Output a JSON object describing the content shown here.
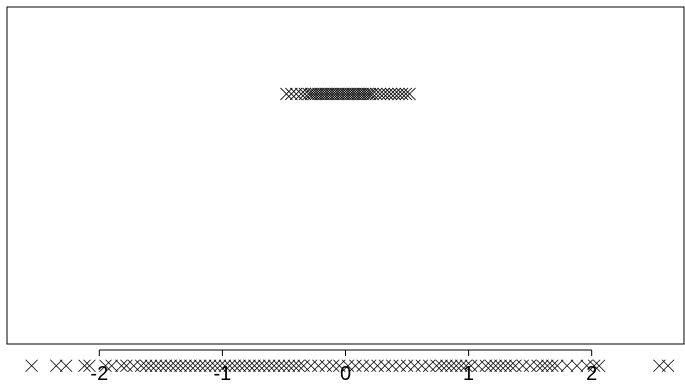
{
  "chart_data": {
    "type": "scatter",
    "title": "",
    "xlabel": "",
    "ylabel": "",
    "xlim": [
      -2.75,
      2.75
    ],
    "ylim": [
      0.08,
      1.32
    ],
    "xticks": [
      -2,
      -1,
      0,
      1,
      2
    ],
    "tick_labels": [
      "-2",
      "-1",
      "0",
      "1",
      "2"
    ],
    "grid": false,
    "marker": "x",
    "series": [
      {
        "y": 1,
        "x": [
          -0.48,
          -0.44,
          -0.4,
          -0.36,
          -0.33,
          -0.3,
          -0.28,
          -0.26,
          -0.24,
          -0.22,
          -0.2,
          -0.18,
          -0.16,
          -0.14,
          -0.12,
          -0.1,
          -0.08,
          -0.06,
          -0.04,
          -0.02,
          0.0,
          0.02,
          0.04,
          0.06,
          0.08,
          0.1,
          0.12,
          0.14,
          0.16,
          0.18,
          0.2,
          0.22,
          0.25,
          0.28,
          0.31,
          0.34,
          0.37,
          0.4,
          0.43,
          0.46,
          0.49,
          0.52
        ]
      },
      {
        "y": 0,
        "x": [
          -2.55,
          -2.35,
          -2.27,
          -2.12,
          -2.08,
          -1.95,
          -1.9,
          -1.82,
          -1.78,
          -1.72,
          -1.66,
          -1.62,
          -1.58,
          -1.54,
          -1.5,
          -1.46,
          -1.42,
          -1.38,
          -1.34,
          -1.3,
          -1.26,
          -1.22,
          -1.18,
          -1.14,
          -1.1,
          -1.06,
          -1.02,
          -0.98,
          -0.94,
          -0.9,
          -0.86,
          -0.82,
          -0.78,
          -0.74,
          -0.7,
          -0.66,
          -0.62,
          -0.58,
          -0.54,
          -0.5,
          -0.46,
          -0.42,
          -0.38,
          -0.34,
          -0.28,
          -0.22,
          -0.16,
          -0.1,
          -0.05,
          0.02,
          0.08,
          0.14,
          0.2,
          0.26,
          0.32,
          0.38,
          0.44,
          0.5,
          0.56,
          0.62,
          0.68,
          0.74,
          0.78,
          0.82,
          0.86,
          0.9,
          0.94,
          0.98,
          1.02,
          1.08,
          1.14,
          1.18,
          1.22,
          1.26,
          1.3,
          1.34,
          1.38,
          1.44,
          1.5,
          1.56,
          1.6,
          1.64,
          1.68,
          1.72,
          1.8,
          1.88,
          1.96,
          2.02,
          2.06,
          2.55,
          2.62
        ]
      }
    ]
  }
}
